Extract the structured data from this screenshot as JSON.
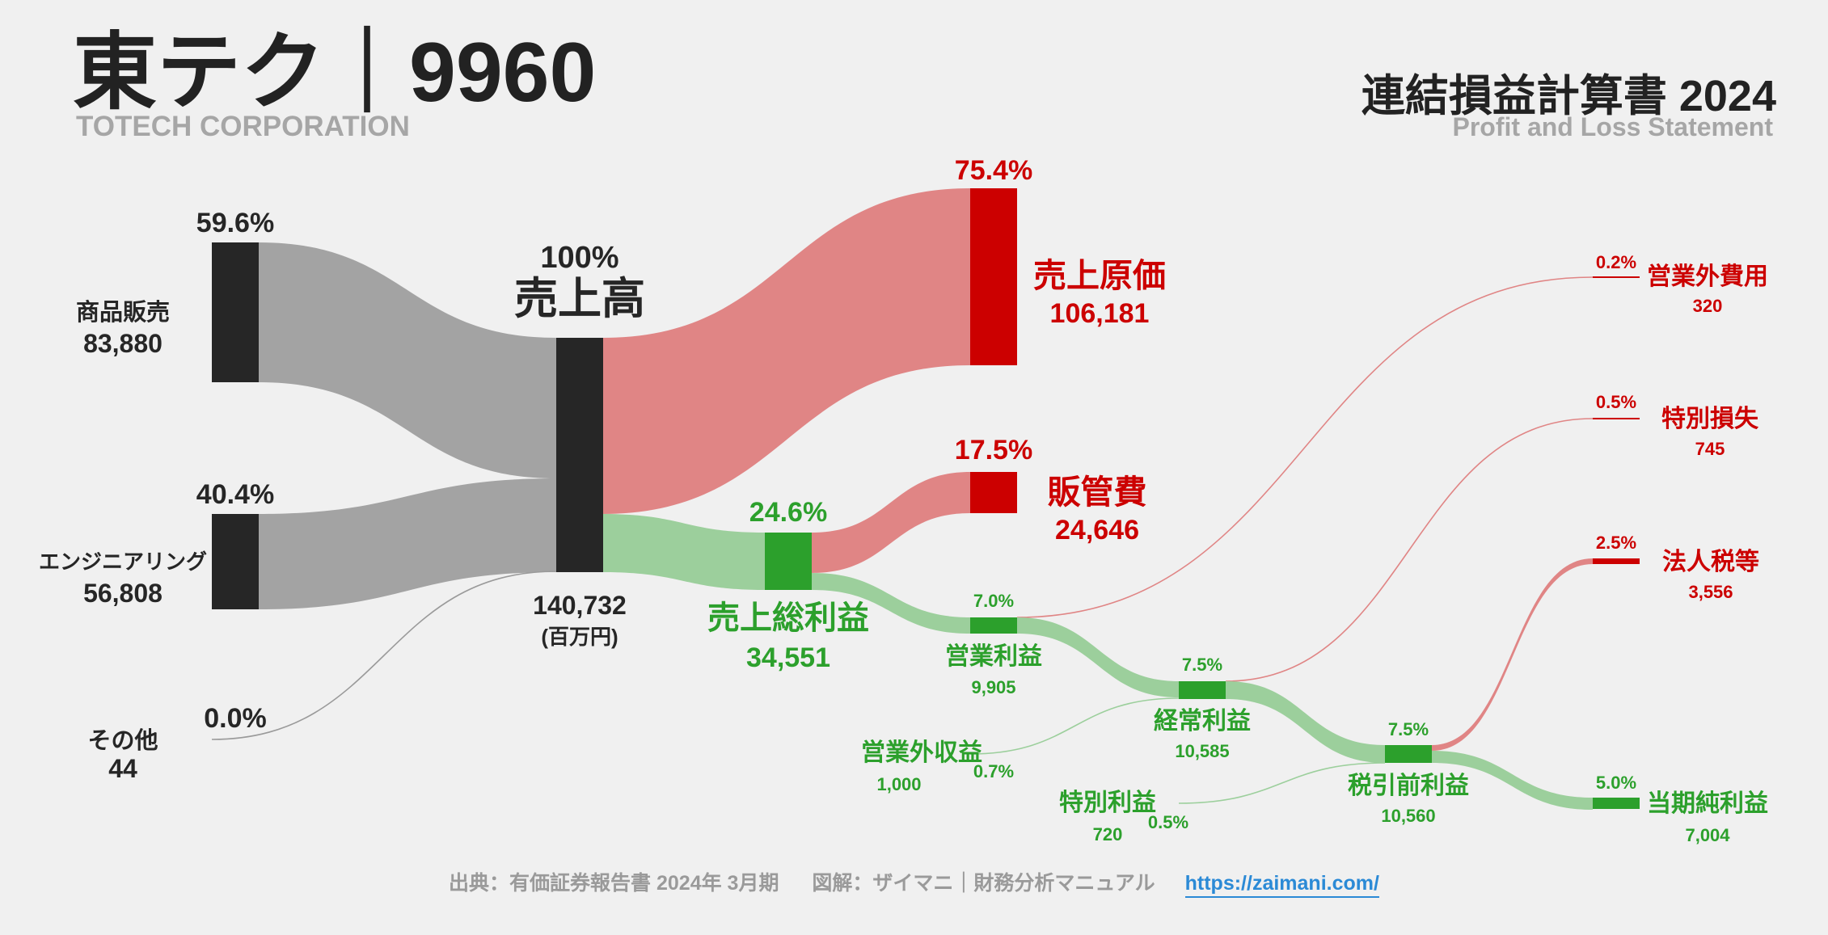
{
  "header": {
    "company_name": "東テク｜9960",
    "company_name_en": "TOTECH CORPORATION",
    "statement_title": "連結損益計算書 2024",
    "statement_title_en": "Profit and Loss Statement"
  },
  "footer": {
    "source": "出典：有価証券報告書 2024年 3月期",
    "credit": "図解：ザイマニ｜財務分析マニュアル",
    "link": "https://zaimani.com/"
  },
  "colors": {
    "background": "#f0f0f0",
    "revenue_node": "#262626",
    "revenue_flow": "#a3a3a3",
    "cost_node": "#cc0000",
    "cost_flow": "#e08585",
    "profit_node": "#2ca02c",
    "profit_flow": "#9ccf9c",
    "text_dark": "#262626",
    "text_red": "#cc0000",
    "text_green": "#2ca02c"
  },
  "chart_data": {
    "type": "sankey",
    "unit": "(百万円)",
    "nodes": [
      {
        "id": "sales_goods",
        "label": "商品販売",
        "value": "83,880",
        "percent": "59.6%",
        "group": "revenue"
      },
      {
        "id": "engineering",
        "label": "エンジニアリング",
        "value": "56,808",
        "percent": "40.4%",
        "group": "revenue"
      },
      {
        "id": "other",
        "label": "その他",
        "value": "44",
        "percent": "0.0%",
        "group": "revenue"
      },
      {
        "id": "revenue",
        "label": "売上高",
        "value": "140,732",
        "percent": "100%",
        "group": "revenue"
      },
      {
        "id": "cogs",
        "label": "売上原価",
        "value": "106,181",
        "percent": "75.4%",
        "group": "cost"
      },
      {
        "id": "gross_profit",
        "label": "売上総利益",
        "value": "34,551",
        "percent": "24.6%",
        "group": "profit"
      },
      {
        "id": "sga",
        "label": "販管費",
        "value": "24,646",
        "percent": "17.5%",
        "group": "cost"
      },
      {
        "id": "operating_profit",
        "label": "営業利益",
        "value": "9,905",
        "percent": "7.0%",
        "group": "profit"
      },
      {
        "id": "non_op_income",
        "label": "営業外収益",
        "value": "1,000",
        "percent": "0.7%",
        "group": "profit"
      },
      {
        "id": "non_op_expense",
        "label": "営業外費用",
        "value": "320",
        "percent": "0.2%",
        "group": "cost"
      },
      {
        "id": "ordinary_profit",
        "label": "経常利益",
        "value": "10,585",
        "percent": "7.5%",
        "group": "profit"
      },
      {
        "id": "extra_gain",
        "label": "特別利益",
        "value": "720",
        "percent": "0.5%",
        "group": "profit"
      },
      {
        "id": "extra_loss",
        "label": "特別損失",
        "value": "745",
        "percent": "0.5%",
        "group": "cost"
      },
      {
        "id": "pretax_profit",
        "label": "税引前利益",
        "value": "10,560",
        "percent": "7.5%",
        "group": "profit"
      },
      {
        "id": "tax",
        "label": "法人税等",
        "value": "3,556",
        "percent": "2.5%",
        "group": "cost"
      },
      {
        "id": "net_profit",
        "label": "当期純利益",
        "value": "7,004",
        "percent": "5.0%",
        "group": "profit"
      }
    ],
    "links": [
      {
        "source": "sales_goods",
        "target": "revenue",
        "value": 83880
      },
      {
        "source": "engineering",
        "target": "revenue",
        "value": 56808
      },
      {
        "source": "other",
        "target": "revenue",
        "value": 44
      },
      {
        "source": "revenue",
        "target": "cogs",
        "value": 106181
      },
      {
        "source": "revenue",
        "target": "gross_profit",
        "value": 34551
      },
      {
        "source": "gross_profit",
        "target": "sga",
        "value": 24646
      },
      {
        "source": "gross_profit",
        "target": "operating_profit",
        "value": 9905
      },
      {
        "source": "operating_profit",
        "target": "non_op_expense",
        "value": 320
      },
      {
        "source": "operating_profit",
        "target": "ordinary_profit",
        "value": 9585
      },
      {
        "source": "non_op_income",
        "target": "ordinary_profit",
        "value": 1000
      },
      {
        "source": "ordinary_profit",
        "target": "extra_loss",
        "value": 745
      },
      {
        "source": "ordinary_profit",
        "target": "pretax_profit",
        "value": 9840
      },
      {
        "source": "extra_gain",
        "target": "pretax_profit",
        "value": 720
      },
      {
        "source": "pretax_profit",
        "target": "tax",
        "value": 3556
      },
      {
        "source": "pretax_profit",
        "target": "net_profit",
        "value": 7004
      }
    ]
  }
}
